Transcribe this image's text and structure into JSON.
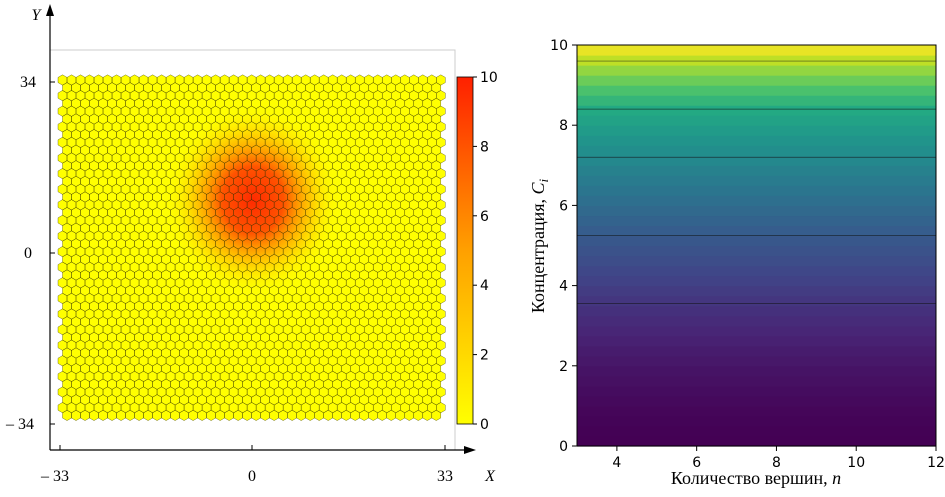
{
  "chart_data": [
    {
      "type": "heatmap",
      "xlabel": "X",
      "ylabel": "Y",
      "x_ticks": [
        "– 33",
        "0",
        "33"
      ],
      "y_ticks": [
        "34",
        "0",
        "– 34"
      ],
      "xlim": [
        -33,
        33
      ],
      "ylim": [
        -34,
        34
      ],
      "colorbar": {
        "ticks": [
          "0",
          "2",
          "4",
          "6",
          "8",
          "10"
        ],
        "values": [
          0,
          2,
          4,
          6,
          8,
          10
        ],
        "range": [
          0,
          10
        ],
        "colors": [
          "#ffff00",
          "#ff2000"
        ]
      },
      "hotspot": {
        "x": 0,
        "y": 14,
        "peak": 10
      },
      "cell_fill_base": "#ffff00",
      "cell_edge": "#333300"
    },
    {
      "type": "heatmap",
      "xlabel": "Количество вершин, ",
      "xlabel_var": "n",
      "ylabel": "Концентрация, ",
      "ylabel_var": "C",
      "ylabel_sub": "i",
      "xlim": [
        3,
        12
      ],
      "ylim": [
        0,
        10
      ],
      "x_ticks": [
        "4",
        "6",
        "8",
        "10",
        "12"
      ],
      "x_tick_values": [
        4,
        6,
        8,
        10,
        12
      ],
      "y_ticks": [
        "0",
        "2",
        "4",
        "6",
        "8",
        "10"
      ],
      "y_tick_values": [
        0,
        2,
        4,
        6,
        8,
        10
      ],
      "contour_lines_y": [
        3.55,
        5.25,
        7.2,
        8.4,
        9.6
      ],
      "colormap": "viridis"
    }
  ]
}
